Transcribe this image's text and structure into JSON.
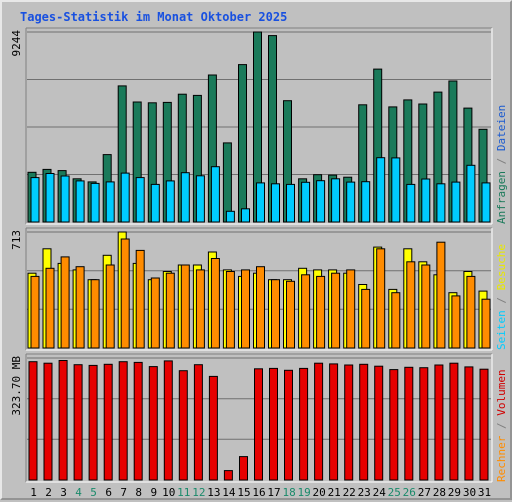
{
  "chart_data": {
    "type": "bar",
    "title": "Tages-Statistik im Monat Oktober 2025",
    "x": [
      "1",
      "2",
      "3",
      "4",
      "5",
      "6",
      "7",
      "8",
      "9",
      "10",
      "11",
      "12",
      "13",
      "14",
      "15",
      "16",
      "17",
      "18",
      "19",
      "20",
      "21",
      "22",
      "23",
      "24",
      "25",
      "26",
      "27",
      "28",
      "29",
      "30",
      "31"
    ],
    "weekend_days": [
      "4",
      "5",
      "11",
      "12",
      "18",
      "19",
      "25",
      "26"
    ],
    "panels": [
      {
        "ymax_label": "9244",
        "ylim": [
          0,
          9244
        ],
        "side_legend": [
          {
            "text": "Anfragen",
            "color": "#1a7a5a"
          },
          {
            "text": " / ",
            "color": "#808080"
          },
          {
            "text": "Dateien",
            "color": "#1a5ad0"
          }
        ],
        "series": [
          {
            "name": "Anfragen",
            "color": "#1a7a5a",
            "values": [
              2420,
              2560,
              2500,
              2100,
              1950,
              3280,
              6620,
              5840,
              5800,
              5820,
              6220,
              6160,
              7150,
              3850,
              7660,
              9244,
              9070,
              5900,
              2100,
              2300,
              2280,
              2180,
              5700,
              7440,
              5600,
              5940,
              5740,
              6320,
              6860,
              5540,
              4510
            ]
          },
          {
            "name": "Dateien",
            "color": "#00ccff",
            "values": [
              2160,
              2360,
              2240,
              2000,
              1880,
              1950,
              2380,
              2160,
              1830,
              2000,
              2400,
              2250,
              2690,
              520,
              640,
              1900,
              1860,
              1830,
              1930,
              2010,
              2100,
              1940,
              1960,
              3130,
              3120,
              1830,
              2090,
              1860,
              1940,
              2760,
              1900
            ]
          }
        ]
      },
      {
        "ymax_label": "713",
        "ylim": [
          0,
          713
        ],
        "side_legend": [
          {
            "text": "Seiten",
            "color": "#00ccff"
          },
          {
            "text": " / ",
            "color": "#808080"
          },
          {
            "text": "Besuche",
            "color": "#e8e800"
          }
        ],
        "series": [
          {
            "name": "Seiten",
            "color": "#ffff00",
            "values": [
              460,
              610,
              520,
              480,
              420,
              570,
              713,
              520,
              420,
              470,
              510,
              510,
              590,
              480,
              440,
              460,
              420,
              420,
              490,
              480,
              480,
              460,
              390,
              620,
              360,
              610,
              530,
              450,
              340,
              470,
              350
            ]
          },
          {
            "name": "Besuche",
            "color": "#ff8c00",
            "values": [
              440,
              490,
              560,
              500,
              420,
              510,
              670,
              600,
              430,
              460,
              510,
              480,
              550,
              470,
              480,
              500,
              420,
              410,
              450,
              440,
              460,
              480,
              360,
              610,
              340,
              530,
              510,
              650,
              320,
              440,
              300
            ]
          }
        ]
      },
      {
        "ymax_label": "323.70 MB",
        "ylim": [
          0,
          323.7
        ],
        "side_legend": [
          {
            "text": "Rechner",
            "color": "#ff8c00"
          },
          {
            "text": " / ",
            "color": "#808080"
          },
          {
            "text": "Volumen",
            "color": "#d00000"
          }
        ],
        "series": [
          {
            "name": "Volumen",
            "color": "#e60000",
            "values": [
              314,
              310,
              317,
              306,
              304,
              307,
              314,
              312,
              301,
              316,
              290,
              306,
              275,
              25,
              62,
              295,
              296,
              291,
              296,
              310,
              308,
              305,
              307,
              302,
              293,
              299,
              298,
              305,
              310,
              300,
              294
            ]
          }
        ]
      }
    ]
  }
}
